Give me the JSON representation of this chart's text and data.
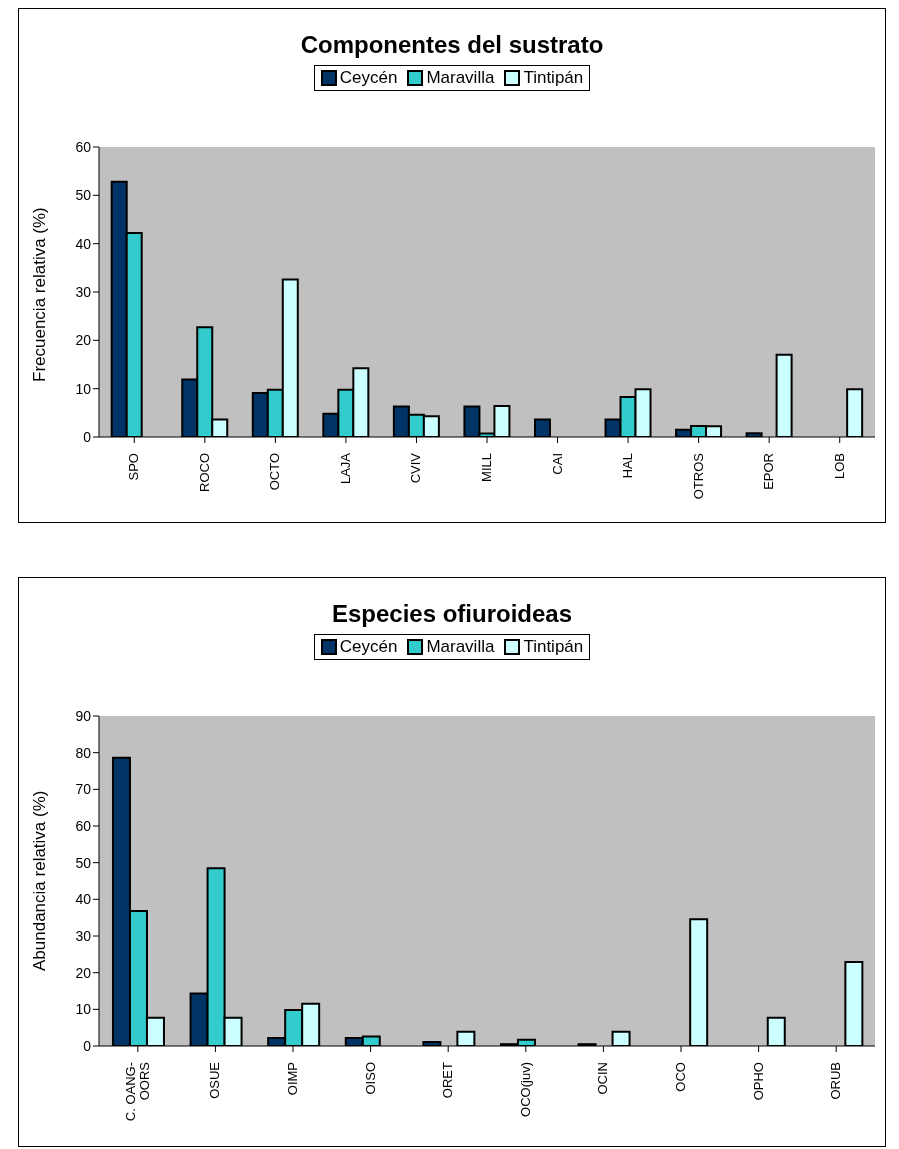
{
  "chart_data": [
    {
      "type": "bar",
      "title": "Componentes del sustrato",
      "ylabel": "Frecuencia relativa (%)",
      "categories": [
        "SPO",
        "ROCO",
        "OCTO",
        "LAJA",
        "CVIV",
        "MILL",
        "CAI",
        "HAL",
        "OTROS",
        "EPOR",
        "LOB"
      ],
      "series": [
        {
          "name": "Ceycén",
          "color": "#003366",
          "values": [
            52.8,
            11.9,
            9.1,
            4.8,
            6.3,
            6.3,
            3.6,
            3.6,
            1.5,
            0.8,
            null
          ]
        },
        {
          "name": "Maravilla",
          "color": "#33cccc",
          "values": [
            42.2,
            22.7,
            9.8,
            9.8,
            4.6,
            0.7,
            null,
            8.3,
            2.3,
            null,
            null
          ]
        },
        {
          "name": "Tintipán",
          "color": "#ccffff",
          "values": [
            null,
            3.6,
            32.6,
            14.2,
            4.3,
            6.4,
            null,
            9.9,
            2.2,
            17.0,
            9.9
          ]
        }
      ],
      "ylim": [
        0,
        60
      ],
      "yticks": [
        0,
        10,
        20,
        30,
        40,
        50,
        60
      ],
      "grid": false,
      "legend": "top"
    },
    {
      "type": "bar",
      "title": "Especies ofiuroideas",
      "ylabel": "Abundancia relativa (%)",
      "categories": [
        "C. OANG-OORS",
        "OSUE",
        "OIMP",
        "OISO",
        "ORET",
        "OCO(juv)",
        "OCIN",
        "OCO",
        "OPHO",
        "ORUB"
      ],
      "series": [
        {
          "name": "Ceycén",
          "color": "#003366",
          "values": [
            78.6,
            14.3,
            2.2,
            2.2,
            1.1,
            0.5,
            0.5,
            null,
            null,
            null
          ]
        },
        {
          "name": "Maravilla",
          "color": "#33cccc",
          "values": [
            36.8,
            48.5,
            9.8,
            2.6,
            null,
            1.7,
            null,
            null,
            null,
            null
          ]
        },
        {
          "name": "Tintipán",
          "color": "#ccffff",
          "values": [
            7.7,
            7.7,
            11.5,
            null,
            3.9,
            null,
            3.9,
            34.6,
            7.7,
            22.9
          ]
        }
      ],
      "ylim": [
        0,
        90
      ],
      "yticks": [
        0,
        10,
        20,
        30,
        40,
        50,
        60,
        70,
        80,
        90
      ],
      "grid": false,
      "legend": "top"
    }
  ]
}
